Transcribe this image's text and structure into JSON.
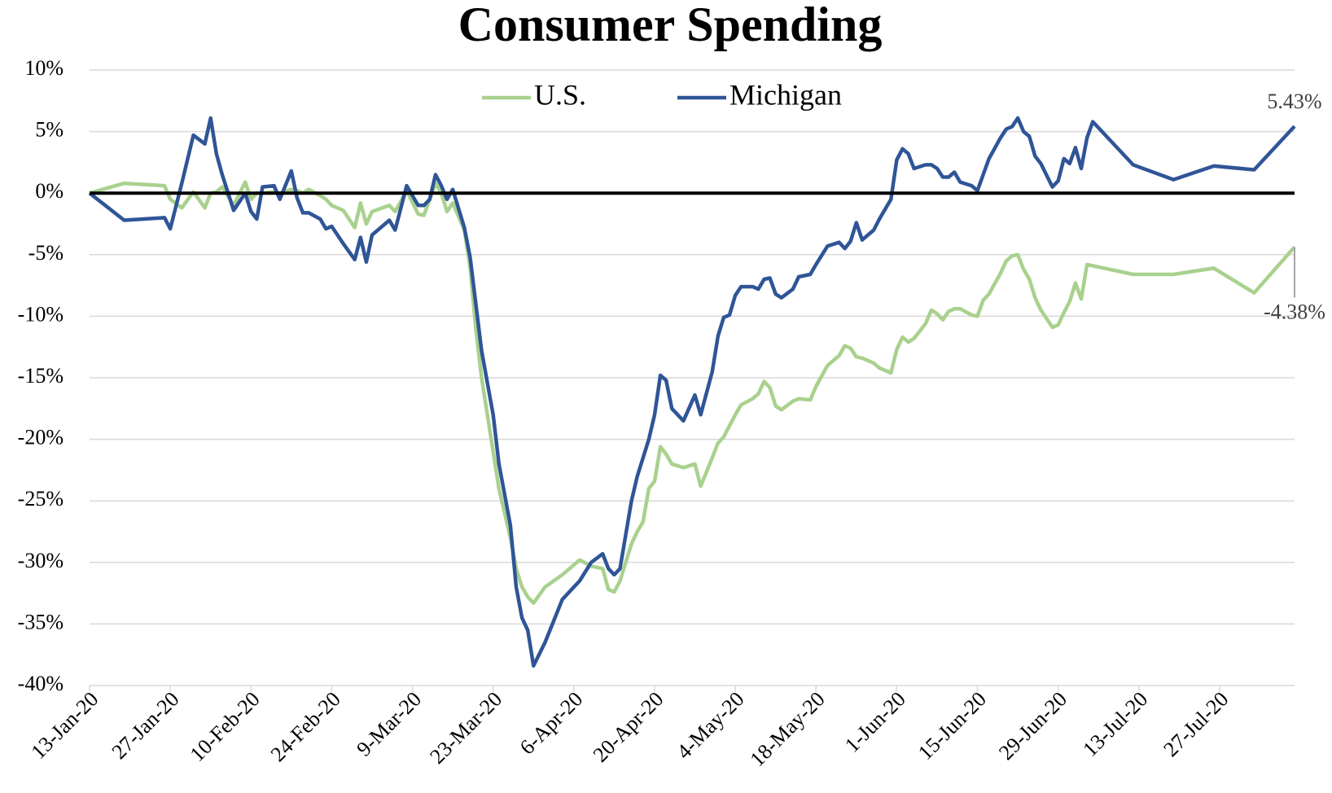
{
  "chart_data": {
    "type": "line",
    "title": "Consumer Spending",
    "x": [
      "13-Jan-20",
      "19-Jan-20",
      "26-Jan-20",
      "27-Jan-20",
      "29-Jan-20",
      "31-Jan-20",
      "2-Feb-20",
      "3-Feb-20",
      "4-Feb-20",
      "5-Feb-20",
      "7-Feb-20",
      "9-Feb-20",
      "10-Feb-20",
      "11-Feb-20",
      "12-Feb-20",
      "14-Feb-20",
      "15-Feb-20",
      "17-Feb-20",
      "18-Feb-20",
      "19-Feb-20",
      "20-Feb-20",
      "22-Feb-20",
      "23-Feb-20",
      "24-Feb-20",
      "26-Feb-20",
      "28-Feb-20",
      "29-Feb-20",
      "1-Mar-20",
      "2-Mar-20",
      "5-Mar-20",
      "6-Mar-20",
      "8-Mar-20",
      "10-Mar-20",
      "11-Mar-20",
      "12-Mar-20",
      "13-Mar-20",
      "14-Mar-20",
      "15-Mar-20",
      "16-Mar-20",
      "18-Mar-20",
      "19-Mar-20",
      "20-Mar-20",
      "21-Mar-20",
      "23-Mar-20",
      "24-Mar-20",
      "26-Mar-20",
      "27-Mar-20",
      "28-Mar-20",
      "29-Mar-20",
      "30-Mar-20",
      "1-Apr-20",
      "4-Apr-20",
      "7-Apr-20",
      "9-Apr-20",
      "11-Apr-20",
      "12-Apr-20",
      "13-Apr-20",
      "14-Apr-20",
      "16-Apr-20",
      "17-Apr-20",
      "18-Apr-20",
      "19-Apr-20",
      "20-Apr-20",
      "21-Apr-20",
      "22-Apr-20",
      "23-Apr-20",
      "25-Apr-20",
      "27-Apr-20",
      "28-Apr-20",
      "30-Apr-20",
      "1-May-20",
      "2-May-20",
      "3-May-20",
      "4-May-20",
      "5-May-20",
      "7-May-20",
      "8-May-20",
      "9-May-20",
      "10-May-20",
      "11-May-20",
      "12-May-20",
      "14-May-20",
      "15-May-20",
      "17-May-20",
      "18-May-20",
      "20-May-20",
      "22-May-20",
      "23-May-20",
      "24-May-20",
      "25-May-20",
      "26-May-20",
      "28-May-20",
      "29-May-20",
      "31-May-20",
      "1-Jun-20",
      "2-Jun-20",
      "3-Jun-20",
      "4-Jun-20",
      "6-Jun-20",
      "7-Jun-20",
      "8-Jun-20",
      "9-Jun-20",
      "10-Jun-20",
      "11-Jun-20",
      "12-Jun-20",
      "14-Jun-20",
      "15-Jun-20",
      "16-Jun-20",
      "17-Jun-20",
      "19-Jun-20",
      "20-Jun-20",
      "21-Jun-20",
      "22-Jun-20",
      "23-Jun-20",
      "24-Jun-20",
      "25-Jun-20",
      "26-Jun-20",
      "28-Jun-20",
      "29-Jun-20",
      "30-Jun-20",
      "1-Jul-20",
      "2-Jul-20",
      "3-Jul-20",
      "4-Jul-20",
      "5-Jul-20",
      "12-Jul-20",
      "19-Jul-20",
      "26-Jul-20",
      "2-Aug-20",
      "9-Aug-20"
    ],
    "series": [
      {
        "name": "U.S.",
        "color": "#a9d18e",
        "values": [
          0,
          0.8,
          0.6,
          -0.5,
          -1.2,
          0.1,
          -1.2,
          0,
          0.1,
          0.5,
          -1,
          0.9,
          -0.5,
          0,
          0,
          0.1,
          0,
          0.3,
          0.2,
          0,
          0.3,
          -0.2,
          -0.5,
          -1,
          -1.4,
          -2.8,
          -0.8,
          -2.5,
          -1.5,
          -1,
          -1.5,
          0.2,
          -1.7,
          -1.8,
          -0.5,
          0.8,
          0,
          -1.5,
          -0.8,
          -3,
          -6,
          -11,
          -15,
          -21,
          -24,
          -28,
          -30.5,
          -32,
          -32.8,
          -33.3,
          -32,
          -31,
          -29.8,
          -30.3,
          -30.5,
          -32.2,
          -32.4,
          -31.5,
          -28.5,
          -27.5,
          -26.7,
          -24,
          -23.4,
          -20.6,
          -21.2,
          -22,
          -22.3,
          -22,
          -23.8,
          -21.5,
          -20.3,
          -19.8,
          -18.9,
          -18,
          -17.2,
          -16.7,
          -16.3,
          -15.3,
          -15.8,
          -17.3,
          -17.6,
          -16.9,
          -16.7,
          -16.8,
          -15.7,
          -14,
          -13.2,
          -12.4,
          -12.6,
          -13.3,
          -13.4,
          -13.8,
          -14.2,
          -14.6,
          -12.7,
          -11.7,
          -12.1,
          -11.8,
          -10.6,
          -9.5,
          -9.8,
          -10.3,
          -9.6,
          -9.4,
          -9.4,
          -9.9,
          -10,
          -8.7,
          -8.2,
          -6.5,
          -5.5,
          -5.1,
          -5,
          -6.2,
          -7,
          -8.5,
          -9.5,
          -10.9,
          -10.7,
          -9.7,
          -8.8,
          -7.3,
          -8.6,
          -5.8,
          -5.9,
          -6.6,
          -6.6,
          -6.1,
          -8.1,
          -4.38
        ]
      },
      {
        "name": "Michigan",
        "color": "#2f5597",
        "values": [
          0,
          -2.2,
          -2,
          -2.9,
          0.8,
          4.7,
          4,
          6.1,
          3.2,
          1.5,
          -1.4,
          0,
          -1.5,
          -2.1,
          0.5,
          0.6,
          -0.5,
          1.8,
          -0.4,
          -1.6,
          -1.6,
          -2.1,
          -2.9,
          -2.7,
          -4.1,
          -5.4,
          -3.6,
          -5.6,
          -3.4,
          -2.2,
          -3,
          0.6,
          -1,
          -1,
          -0.5,
          1.5,
          0.6,
          -0.5,
          0.3,
          -2.8,
          -5.2,
          -9,
          -12.8,
          -18,
          -22,
          -27,
          -32,
          -34.5,
          -35.5,
          -38.4,
          -36.5,
          -33,
          -31.5,
          -30,
          -29.3,
          -30.5,
          -31,
          -30.5,
          -25,
          -23,
          -21.5,
          -20,
          -18,
          -14.8,
          -15.2,
          -17.5,
          -18.5,
          -16.4,
          -18,
          -14.5,
          -11.6,
          -10.1,
          -9.9,
          -8.3,
          -7.6,
          -7.6,
          -7.8,
          -7,
          -6.9,
          -8.2,
          -8.5,
          -7.8,
          -6.8,
          -6.6,
          -5.8,
          -4.3,
          -4,
          -4.5,
          -3.9,
          -2.4,
          -3.8,
          -3,
          -2.1,
          -0.5,
          2.7,
          3.6,
          3.2,
          2,
          2.3,
          2.3,
          2,
          1.3,
          1.3,
          1.7,
          0.9,
          0.6,
          0.2,
          1.5,
          2.8,
          4.5,
          5.2,
          5.4,
          6.1,
          5,
          4.6,
          3,
          2.4,
          0.5,
          1,
          2.8,
          2.4,
          3.7,
          2,
          4.5,
          5.8,
          2.3,
          1.1,
          2.2,
          1.9,
          5.43
        ]
      }
    ],
    "annotations": [
      "-4.38%",
      "5.43%"
    ],
    "xlim": [
      "13-Jan-20",
      "9-Aug-20"
    ],
    "xticks": [
      "13-Jan-20",
      "27-Jan-20",
      "10-Feb-20",
      "24-Feb-20",
      "9-Mar-20",
      "23-Mar-20",
      "6-Apr-20",
      "20-Apr-20",
      "4-May-20",
      "18-May-20",
      "1-Jun-20",
      "15-Jun-20",
      "29-Jun-20",
      "13-Jul-20",
      "27-Jul-20"
    ],
    "ylim": [
      -40,
      10
    ],
    "yticks": [
      {
        "value": -40,
        "label": "-40%"
      },
      {
        "value": -35,
        "label": "-35%"
      },
      {
        "value": -30,
        "label": "-30%"
      },
      {
        "value": -25,
        "label": "-25%"
      },
      {
        "value": -20,
        "label": "-20%"
      },
      {
        "value": -15,
        "label": "-15%"
      },
      {
        "value": -10,
        "label": "-10%"
      },
      {
        "value": -5,
        "label": "-5%"
      },
      {
        "value": 0,
        "label": "0%"
      },
      {
        "value": 5,
        "label": "5%"
      },
      {
        "value": 10,
        "label": "10%"
      }
    ],
    "grid": true,
    "legend": "top"
  }
}
